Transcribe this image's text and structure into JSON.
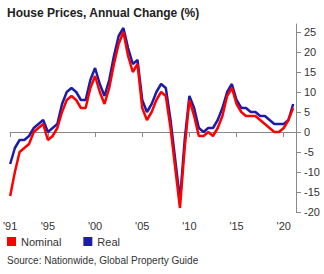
{
  "chart_data": {
    "type": "line",
    "title": "House Prices, Annual Change (%)",
    "source": "Source: Nationwide, Global Property Guide",
    "x": [
      1991.0,
      1991.5,
      1992.0,
      1992.5,
      1993.0,
      1993.5,
      1994.0,
      1994.5,
      1995.0,
      1995.5,
      1996.0,
      1996.5,
      1997.0,
      1997.5,
      1998.0,
      1998.5,
      1999.0,
      1999.5,
      2000.0,
      2000.5,
      2001.0,
      2001.5,
      2002.0,
      2002.5,
      2003.0,
      2003.5,
      2004.0,
      2004.5,
      2005.0,
      2005.5,
      2006.0,
      2006.5,
      2007.0,
      2007.5,
      2008.0,
      2008.5,
      2009.0,
      2009.5,
      2010.0,
      2010.5,
      2011.0,
      2011.5,
      2012.0,
      2012.5,
      2013.0,
      2013.5,
      2014.0,
      2014.5,
      2015.0,
      2015.5,
      2016.0,
      2016.5,
      2017.0,
      2017.5,
      2018.0,
      2018.5,
      2019.0,
      2019.5,
      2020.0,
      2020.5,
      2021.0
    ],
    "series": [
      {
        "name": "Nominal",
        "color": "#ff0000",
        "values": [
          -16,
          -10,
          -5,
          -4,
          -3,
          0,
          1,
          2,
          -2,
          -1,
          1,
          5,
          8,
          9,
          8,
          6,
          6,
          11,
          14,
          10,
          7,
          11,
          17,
          22,
          25,
          19,
          15,
          17,
          6,
          3,
          5,
          8,
          10,
          9,
          1,
          -9,
          -19,
          -4,
          8,
          4,
          -1,
          -1,
          0,
          -1,
          1,
          4,
          9,
          11,
          7,
          5,
          4,
          4,
          4,
          3,
          2,
          1,
          0,
          0,
          1,
          3,
          6
        ]
      },
      {
        "name": "Real",
        "color": "#1c1ca8",
        "values": [
          -8,
          -4,
          -2,
          -2,
          -1,
          1,
          2,
          3,
          0,
          1,
          2,
          7,
          10,
          11,
          10,
          8,
          8,
          13,
          16,
          12,
          9,
          13,
          19,
          24,
          26,
          21,
          17,
          18,
          8,
          5,
          7,
          10,
          12,
          11,
          3,
          -7,
          -17,
          -2,
          9,
          6,
          1,
          0,
          1,
          1,
          3,
          6,
          10,
          12,
          8,
          6,
          6,
          5,
          5,
          4,
          4,
          3,
          2,
          2,
          2,
          3,
          7
        ]
      }
    ],
    "xlim": [
      1991,
      2021.3
    ],
    "xticks": [
      {
        "value": 1991,
        "label": "'91"
      },
      {
        "value": 1995,
        "label": "'95"
      },
      {
        "value": 2000,
        "label": "'00"
      },
      {
        "value": 2005,
        "label": "'05"
      },
      {
        "value": 2010,
        "label": "'10"
      },
      {
        "value": 2015,
        "label": "'15"
      },
      {
        "value": 2020,
        "label": "'20"
      }
    ],
    "ylim": [
      -20,
      27
    ],
    "yticks": [
      -20,
      -15,
      -10,
      -5,
      0,
      5,
      10,
      15,
      20,
      25
    ],
    "grid": false,
    "legend": "bottom-left",
    "marker": "none"
  }
}
